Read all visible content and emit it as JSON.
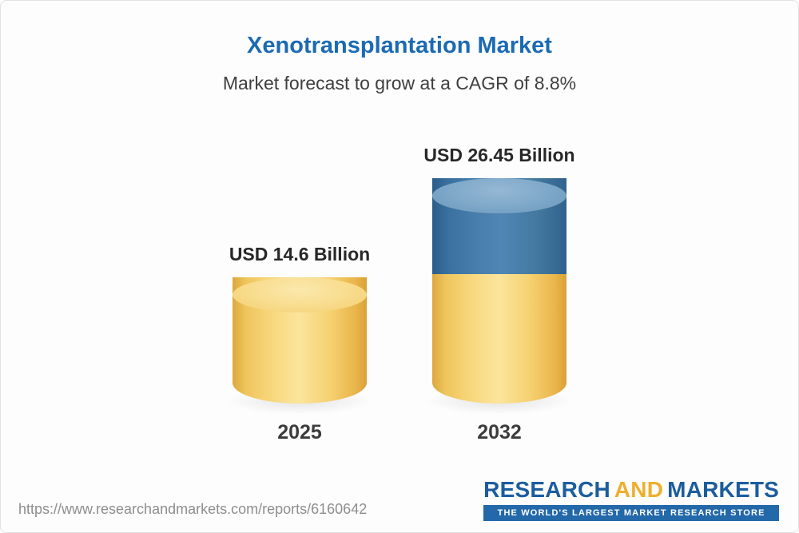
{
  "chart_data": {
    "type": "bar",
    "bar_style": "3d-cylinder",
    "title": "Xenotransplantation Market",
    "subtitle": "Market forecast to grow at a CAGR of 8.8%",
    "categories": [
      "2025",
      "2032"
    ],
    "values": [
      14.6,
      26.45
    ],
    "value_labels": [
      "USD 14.6 Billion",
      "USD 26.45 Billion"
    ],
    "unit": "USD Billion",
    "cagr_pct": 8.8,
    "ylim": [
      0,
      30
    ],
    "grid": false,
    "legend": "none",
    "segments_2032": {
      "base_value": 14.6,
      "growth_value": 11.85
    },
    "colors": {
      "base_segment": "#F6CF72",
      "growth_segment": "#4A80AE",
      "title_text": "#1B6AB3"
    }
  },
  "footer": {
    "url": "https://www.researchandmarkets.com/reports/6160642",
    "logo": {
      "research": "RESEARCH",
      "and": "AND",
      "markets": "MARKETS",
      "tagline": "THE WORLD'S LARGEST MARKET RESEARCH STORE"
    }
  }
}
